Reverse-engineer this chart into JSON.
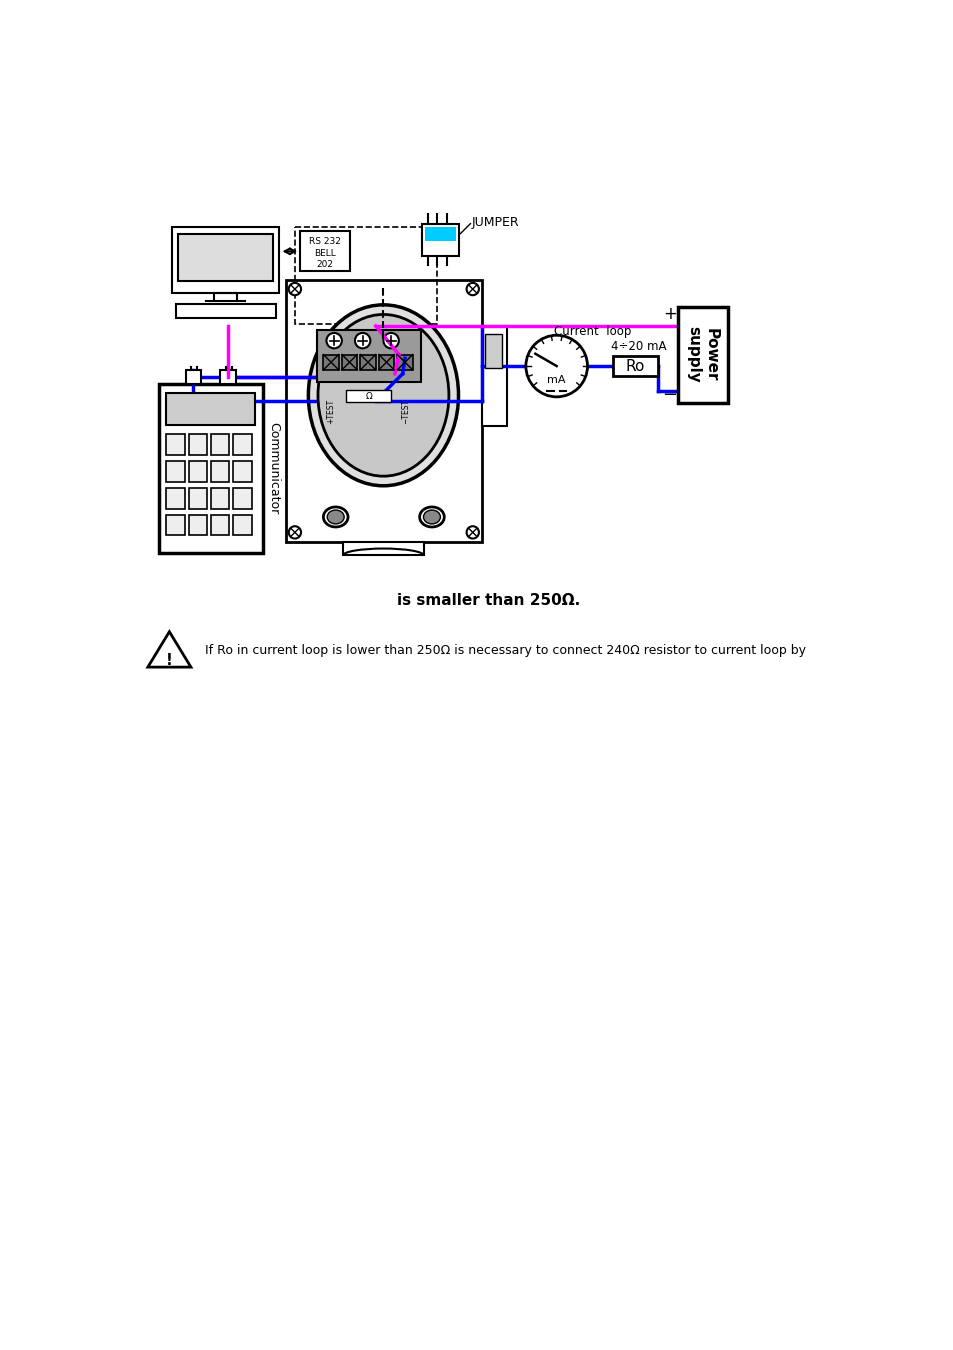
{
  "bg_color": "#ffffff",
  "text_smaller_than": "is smaller than 250Ω.",
  "text_warning": "If Ro in current loop is lower than 250Ω is necessary to connect 240Ω resistor to current loop by",
  "label_jumper": "JUMPER",
  "label_current_loop": "Current  loop",
  "label_4_20mA": "4÷20 mA",
  "label_mA": "mA",
  "label_Ro": "Ro",
  "label_plus": "+",
  "label_minus": "−",
  "label_power_supply": "Power\nsupply",
  "label_communicator": "Communicator",
  "label_rs232": "RS 232\nBELL\n202",
  "color_magenta": "#ff00ff",
  "color_blue": "#0000ff",
  "color_cyan": "#00ccff",
  "color_black": "#000000",
  "color_gray": "#888888",
  "color_lightgray": "#cccccc",
  "color_darkgray": "#aaaaaa"
}
